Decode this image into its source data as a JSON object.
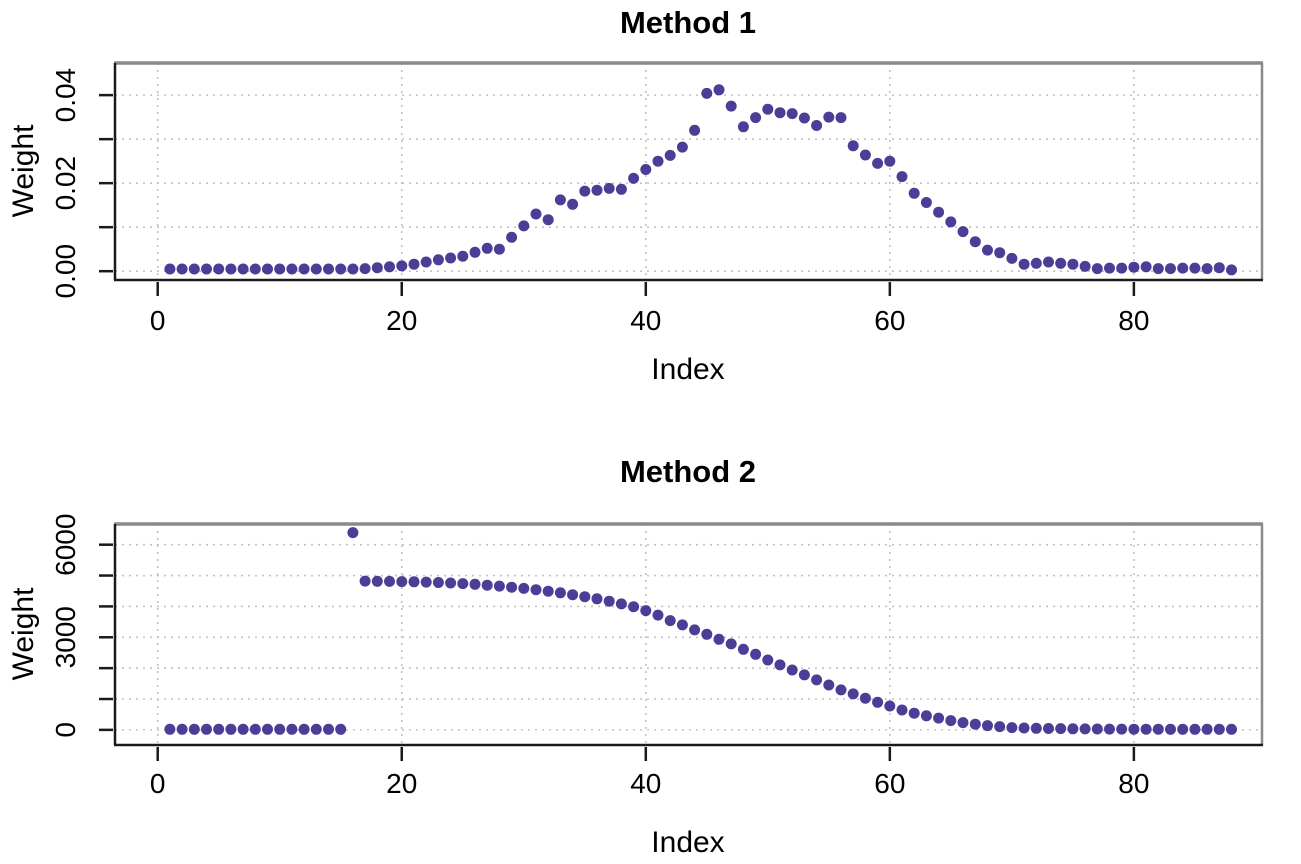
{
  "figure": {
    "background": "#ffffff",
    "point_color": "#3d2d8e",
    "grid_color": "#c2c2c2",
    "axis_color": "#1a1a1a",
    "box_top_color": "#8a8a8a",
    "text_color": "#000000"
  },
  "chart_data": [
    {
      "type": "scatter",
      "title": "Method 1",
      "xlabel": "Index",
      "ylabel": "Weight",
      "grid": true,
      "legend": "none",
      "xlim": [
        -3.5,
        90.5
      ],
      "ylim": [
        -0.002,
        0.0473
      ],
      "xticks": [
        {
          "v": 0,
          "label": "0"
        },
        {
          "v": 20,
          "label": "20"
        },
        {
          "v": 40,
          "label": "40"
        },
        {
          "v": 60,
          "label": "60"
        },
        {
          "v": 80,
          "label": "80"
        }
      ],
      "yticks": [
        {
          "v": 0.0,
          "label": "0.00"
        },
        {
          "v": 0.01,
          "label": ""
        },
        {
          "v": 0.02,
          "label": "0.02"
        },
        {
          "v": 0.03,
          "label": ""
        },
        {
          "v": 0.04,
          "label": "0.04"
        }
      ],
      "x": [
        1,
        2,
        3,
        4,
        5,
        6,
        7,
        8,
        9,
        10,
        11,
        12,
        13,
        14,
        15,
        16,
        17,
        18,
        19,
        20,
        21,
        22,
        23,
        24,
        25,
        26,
        27,
        28,
        29,
        30,
        31,
        32,
        33,
        34,
        35,
        36,
        37,
        38,
        39,
        40,
        41,
        42,
        43,
        44,
        45,
        46,
        47,
        48,
        49,
        50,
        51,
        52,
        53,
        54,
        55,
        56,
        57,
        58,
        59,
        60,
        61,
        62,
        63,
        64,
        65,
        66,
        67,
        68,
        69,
        70,
        71,
        72,
        73,
        74,
        75,
        76,
        77,
        78,
        79,
        80,
        81,
        82,
        83,
        84,
        85,
        86,
        87,
        88
      ],
      "y": [
        0.0005,
        0.0005,
        0.0005,
        0.0005,
        0.0005,
        0.0005,
        0.0005,
        0.0005,
        0.0005,
        0.0005,
        0.0005,
        0.0005,
        0.0005,
        0.0005,
        0.0005,
        0.0005,
        0.0006,
        0.0008,
        0.001,
        0.0012,
        0.0016,
        0.0021,
        0.0026,
        0.003,
        0.0034,
        0.0043,
        0.0052,
        0.005,
        0.0077,
        0.0103,
        0.013,
        0.0117,
        0.0162,
        0.0152,
        0.0182,
        0.0184,
        0.0188,
        0.0186,
        0.0211,
        0.0231,
        0.025,
        0.0263,
        0.0282,
        0.032,
        0.0404,
        0.0412,
        0.0375,
        0.0328,
        0.0349,
        0.0368,
        0.036,
        0.0358,
        0.0348,
        0.0331,
        0.035,
        0.0349,
        0.0285,
        0.0264,
        0.0245,
        0.025,
        0.0215,
        0.0177,
        0.0156,
        0.0134,
        0.0112,
        0.009,
        0.0067,
        0.0048,
        0.0042,
        0.0029,
        0.0016,
        0.0018,
        0.0021,
        0.0018,
        0.0016,
        0.0011,
        0.0006,
        0.0007,
        0.0007,
        0.0009,
        0.001,
        0.0006,
        0.0006,
        0.0007,
        0.0007,
        0.0006,
        0.0008,
        0.0003
      ]
    },
    {
      "type": "scatter",
      "title": "Method 2",
      "xlabel": "Index",
      "ylabel": "Weight",
      "grid": true,
      "legend": "none",
      "xlim": [
        -3.5,
        90.5
      ],
      "ylim": [
        -490,
        6670
      ],
      "xticks": [
        {
          "v": 0,
          "label": "0"
        },
        {
          "v": 20,
          "label": "20"
        },
        {
          "v": 40,
          "label": "40"
        },
        {
          "v": 60,
          "label": "60"
        },
        {
          "v": 80,
          "label": "80"
        }
      ],
      "yticks": [
        {
          "v": 0,
          "label": "0"
        },
        {
          "v": 1000,
          "label": ""
        },
        {
          "v": 2000,
          "label": ""
        },
        {
          "v": 3000,
          "label": "3000"
        },
        {
          "v": 4000,
          "label": ""
        },
        {
          "v": 5000,
          "label": ""
        },
        {
          "v": 6000,
          "label": "6000"
        }
      ],
      "x": [
        1,
        2,
        3,
        4,
        5,
        6,
        7,
        8,
        9,
        10,
        11,
        12,
        13,
        14,
        15,
        16,
        17,
        18,
        19,
        20,
        21,
        22,
        23,
        24,
        25,
        26,
        27,
        28,
        29,
        30,
        31,
        32,
        33,
        34,
        35,
        36,
        37,
        38,
        39,
        40,
        41,
        42,
        43,
        44,
        45,
        46,
        47,
        48,
        49,
        50,
        51,
        52,
        53,
        54,
        55,
        56,
        57,
        58,
        59,
        60,
        61,
        62,
        63,
        64,
        65,
        66,
        67,
        68,
        69,
        70,
        71,
        72,
        73,
        74,
        75,
        76,
        77,
        78,
        79,
        80,
        81,
        82,
        83,
        84,
        85,
        86,
        87,
        88
      ],
      "y": [
        20,
        20,
        20,
        20,
        20,
        20,
        20,
        20,
        20,
        20,
        20,
        20,
        20,
        20,
        20,
        6390,
        4820,
        4815,
        4810,
        4805,
        4798,
        4788,
        4775,
        4758,
        4738,
        4715,
        4688,
        4658,
        4623,
        4585,
        4542,
        4494,
        4440,
        4380,
        4315,
        4245,
        4170,
        4080,
        3990,
        3865,
        3720,
        3540,
        3400,
        3240,
        3095,
        2935,
        2785,
        2610,
        2450,
        2265,
        2105,
        1940,
        1780,
        1620,
        1455,
        1295,
        1165,
        1025,
        895,
        775,
        645,
        540,
        455,
        380,
        300,
        235,
        185,
        140,
        107,
        75,
        60,
        52,
        45,
        40,
        35,
        31,
        28,
        26,
        24,
        23,
        22,
        21,
        20,
        20,
        19,
        19,
        18,
        18
      ]
    }
  ]
}
